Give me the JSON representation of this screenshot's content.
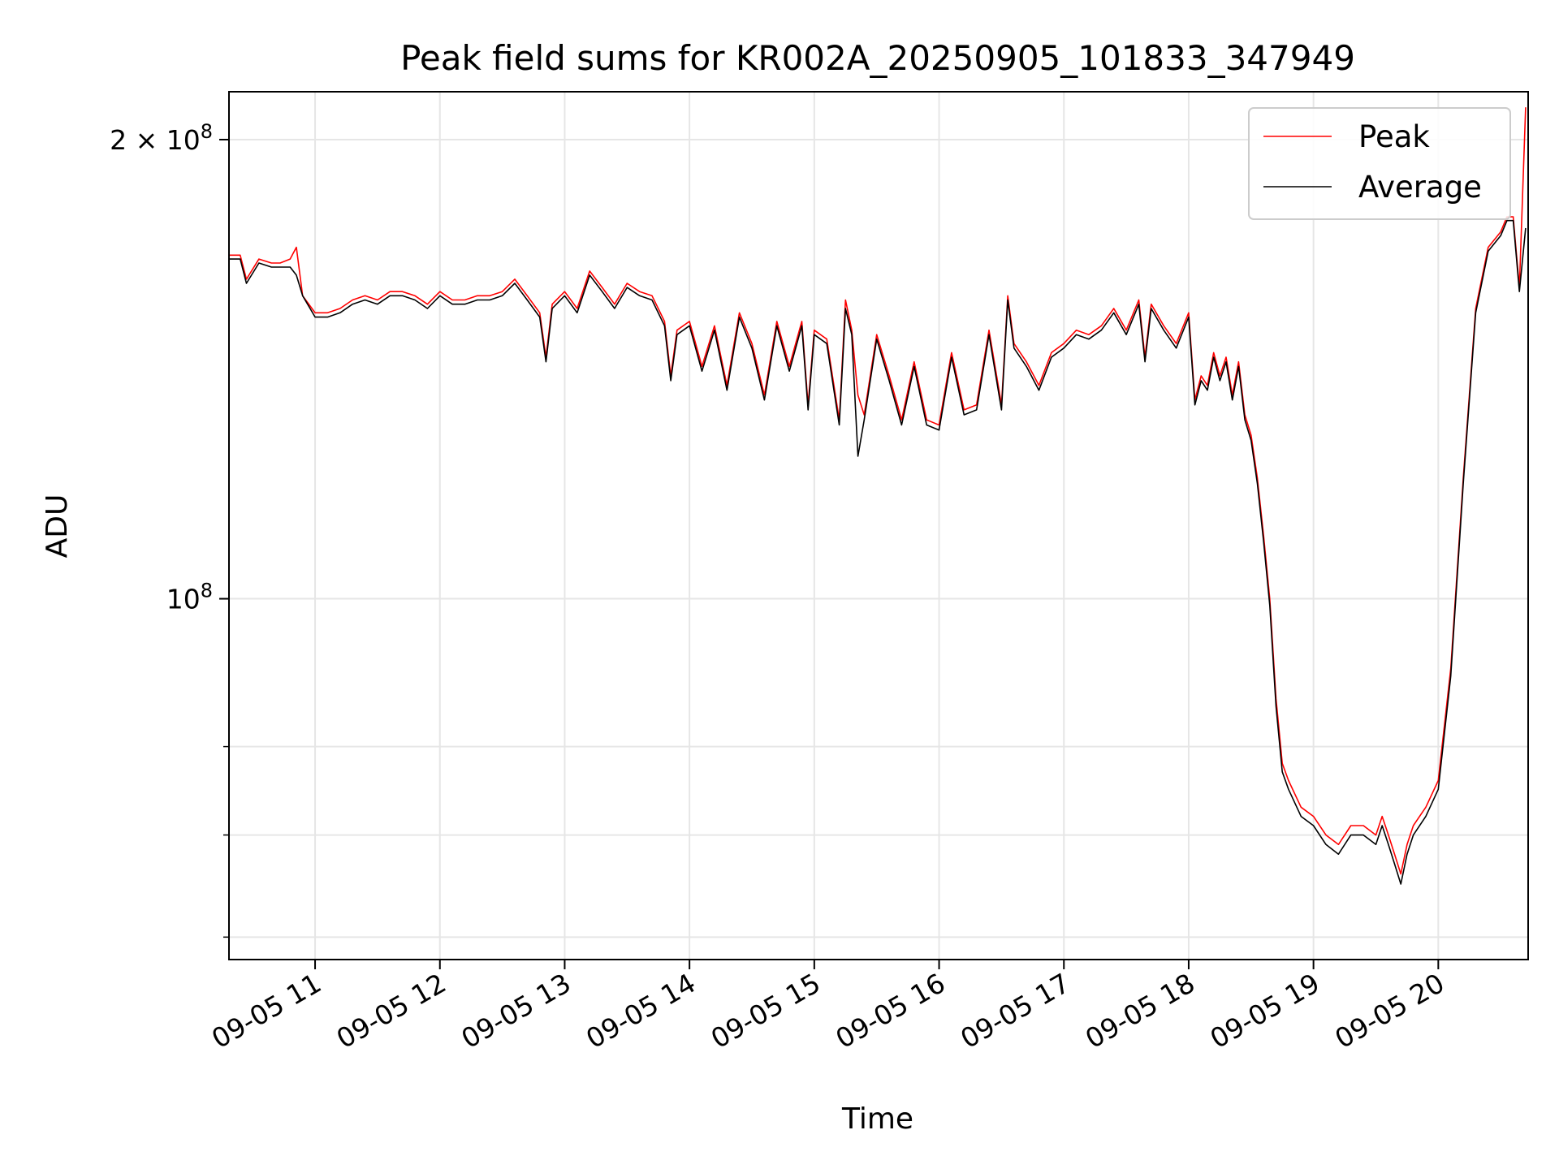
{
  "chart_data": {
    "type": "line",
    "title": "Peak field sums for KR002A_20250905_101833_347949",
    "xlabel": "Time",
    "ylabel": "ADU",
    "yscale": "log",
    "x_tick_labels": [
      "09-05 11",
      "09-05 12",
      "09-05 13",
      "09-05 14",
      "09-05 15",
      "09-05 16",
      "09-05 17",
      "09-05 18",
      "09-05 19",
      "09-05 20"
    ],
    "x_tick_hours": [
      11,
      12,
      13,
      14,
      15,
      16,
      17,
      18,
      19,
      20
    ],
    "y_tick_labels": [
      {
        "value": 200000000,
        "mant": "2 × 10",
        "exp": "8"
      },
      {
        "value": 100000000,
        "mant": "10",
        "exp": "8"
      }
    ],
    "xlim_hours": [
      10.31,
      20.72
    ],
    "ylim": [
      58000000,
      215000000
    ],
    "grid": true,
    "legend_position": "top-right",
    "colors": {
      "peak": "#ff0000",
      "average": "#000000",
      "grid": "#e6e6e6"
    },
    "series": [
      {
        "name": "Peak",
        "color": "#ff0000",
        "x_hours": [
          10.31,
          10.4,
          10.45,
          10.55,
          10.65,
          10.72,
          10.8,
          10.85,
          10.9,
          11.0,
          11.1,
          11.2,
          11.3,
          11.4,
          11.5,
          11.6,
          11.7,
          11.8,
          11.9,
          12.0,
          12.1,
          12.2,
          12.3,
          12.4,
          12.5,
          12.6,
          12.7,
          12.8,
          12.85,
          12.9,
          13.0,
          13.1,
          13.2,
          13.3,
          13.4,
          13.5,
          13.6,
          13.7,
          13.8,
          13.85,
          13.9,
          14.0,
          14.1,
          14.2,
          14.3,
          14.4,
          14.5,
          14.6,
          14.7,
          14.8,
          14.9,
          14.95,
          15.0,
          15.1,
          15.2,
          15.25,
          15.3,
          15.35,
          15.4,
          15.5,
          15.6,
          15.7,
          15.8,
          15.9,
          16.0,
          16.1,
          16.2,
          16.3,
          16.4,
          16.5,
          16.55,
          16.6,
          16.7,
          16.8,
          16.9,
          17.0,
          17.1,
          17.2,
          17.3,
          17.4,
          17.5,
          17.6,
          17.65,
          17.7,
          17.8,
          17.9,
          18.0,
          18.05,
          18.1,
          18.15,
          18.2,
          18.25,
          18.3,
          18.35,
          18.4,
          18.45,
          18.5,
          18.55,
          18.6,
          18.65,
          18.7,
          18.75,
          18.8,
          18.9,
          19.0,
          19.1,
          19.2,
          19.3,
          19.4,
          19.5,
          19.55,
          19.6,
          19.65,
          19.7,
          19.75,
          19.8,
          19.9,
          20.0,
          20.1,
          20.2,
          20.3,
          20.4,
          20.5,
          20.55,
          20.6,
          20.65,
          20.7
        ],
        "values": [
          168,
          168,
          162,
          167,
          166,
          166,
          167,
          170,
          158,
          154,
          154,
          155,
          157,
          158,
          157,
          159,
          159,
          158,
          156,
          159,
          157,
          157,
          158,
          158,
          159,
          162,
          158,
          154,
          144,
          156,
          159,
          155,
          164,
          160,
          156,
          161,
          159,
          158,
          152,
          140,
          150,
          152,
          142,
          151,
          138,
          154,
          147,
          136,
          152,
          142,
          152,
          134,
          150,
          148,
          131,
          157,
          150,
          136,
          132,
          149,
          140,
          131,
          143,
          131,
          130,
          145,
          133,
          134,
          150,
          134,
          158,
          147,
          143,
          138,
          145,
          147,
          150,
          149,
          151,
          155,
          150,
          157,
          144,
          156,
          151,
          147,
          154,
          135,
          140,
          138,
          145,
          140,
          144,
          136,
          143,
          132,
          128,
          120,
          110,
          100,
          86,
          78,
          76,
          73,
          72,
          70,
          69,
          71,
          71,
          70,
          72,
          70,
          68,
          66,
          69,
          71,
          73,
          76,
          90,
          120,
          155,
          170,
          174,
          178,
          178,
          160,
          210
        ]
      },
      {
        "name": "Average",
        "color": "#000000",
        "x_hours": [
          10.31,
          10.4,
          10.45,
          10.55,
          10.65,
          10.72,
          10.8,
          10.85,
          10.9,
          11.0,
          11.1,
          11.2,
          11.3,
          11.4,
          11.5,
          11.6,
          11.7,
          11.8,
          11.9,
          12.0,
          12.1,
          12.2,
          12.3,
          12.4,
          12.5,
          12.6,
          12.7,
          12.8,
          12.85,
          12.9,
          13.0,
          13.1,
          13.2,
          13.3,
          13.4,
          13.5,
          13.6,
          13.7,
          13.8,
          13.85,
          13.9,
          14.0,
          14.1,
          14.2,
          14.3,
          14.4,
          14.5,
          14.6,
          14.7,
          14.8,
          14.9,
          14.95,
          15.0,
          15.1,
          15.2,
          15.25,
          15.3,
          15.35,
          15.4,
          15.5,
          15.6,
          15.7,
          15.8,
          15.9,
          16.0,
          16.1,
          16.2,
          16.3,
          16.4,
          16.5,
          16.55,
          16.6,
          16.7,
          16.8,
          16.9,
          17.0,
          17.1,
          17.2,
          17.3,
          17.4,
          17.5,
          17.6,
          17.65,
          17.7,
          17.8,
          17.9,
          18.0,
          18.05,
          18.1,
          18.15,
          18.2,
          18.25,
          18.3,
          18.35,
          18.4,
          18.45,
          18.5,
          18.55,
          18.6,
          18.65,
          18.7,
          18.75,
          18.8,
          18.9,
          19.0,
          19.1,
          19.2,
          19.3,
          19.4,
          19.5,
          19.55,
          19.6,
          19.65,
          19.7,
          19.75,
          19.8,
          19.9,
          20.0,
          20.1,
          20.2,
          20.3,
          20.4,
          20.5,
          20.55,
          20.6,
          20.65,
          20.7
        ],
        "values": [
          167,
          167,
          161,
          166,
          165,
          165,
          165,
          163,
          158,
          153,
          153,
          154,
          156,
          157,
          156,
          158,
          158,
          157,
          155,
          158,
          156,
          156,
          157,
          157,
          158,
          161,
          157,
          153,
          143,
          155,
          158,
          154,
          163,
          159,
          155,
          160,
          158,
          157,
          151,
          139,
          149,
          151,
          141,
          150,
          137,
          153,
          146,
          135,
          151,
          141,
          151,
          133,
          149,
          147,
          130,
          155,
          149,
          124,
          131,
          148,
          139,
          130,
          142,
          130,
          129,
          144,
          132,
          133,
          149,
          133,
          157,
          146,
          142,
          137,
          144,
          146,
          149,
          148,
          150,
          154,
          149,
          156,
          143,
          155,
          150,
          146,
          153,
          134,
          139,
          137,
          144,
          139,
          143,
          135,
          142,
          131,
          127,
          119,
          109,
          99,
          85,
          77,
          75,
          72,
          71,
          69,
          68,
          70,
          70,
          69,
          71,
          69,
          67,
          65,
          68,
          70,
          72,
          75,
          89,
          119,
          154,
          169,
          173,
          177,
          177,
          159,
          175
        ]
      }
    ]
  }
}
